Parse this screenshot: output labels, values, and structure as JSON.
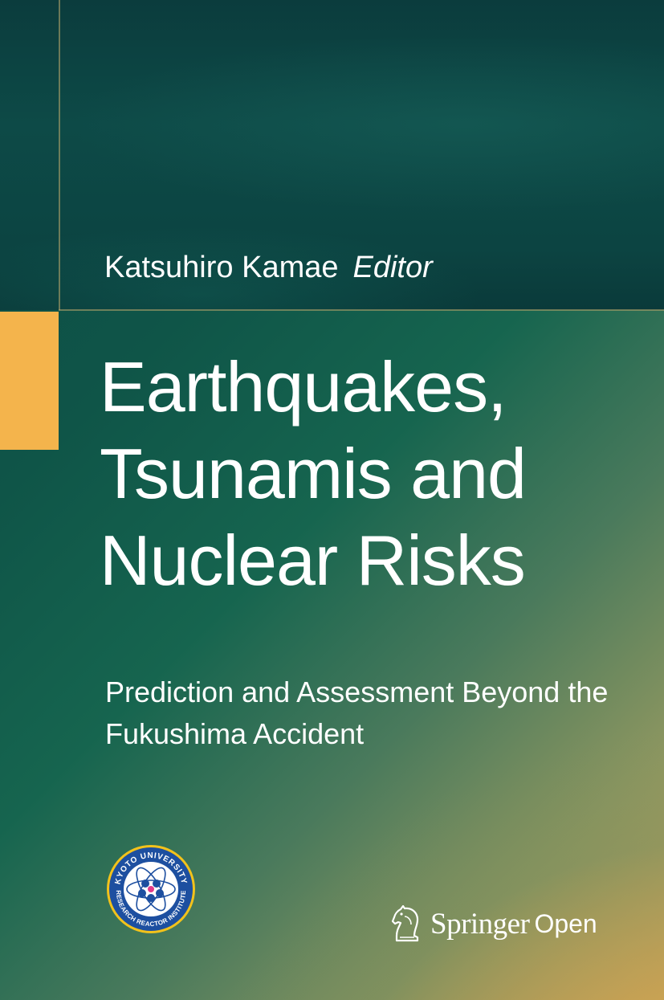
{
  "cover": {
    "author": "Katsuhiro Kamae",
    "author_role": "Editor",
    "title_lines": [
      "Earthquakes,",
      "Tsunamis and",
      "Nuclear Risks"
    ],
    "subtitle_lines": [
      "Prediction and Assessment Beyond the",
      "Fukushima Accident"
    ]
  },
  "logo": {
    "ring_text": "KYOTO UNIVERSITY",
    "ring_text_bottom": "RESEARCH REACTOR INSTITUTE",
    "colors": {
      "ring": "#1d4fa0",
      "inner": "#ffffff",
      "accent": "#e23a8a",
      "border": "#f2c21b"
    }
  },
  "publisher": {
    "name": "Springer",
    "suffix": "Open",
    "icon": "chess-knight-icon"
  },
  "colors": {
    "accent": "#f4b44c",
    "top_band": "#0c4442",
    "gradient_end": "#c4a55e"
  }
}
